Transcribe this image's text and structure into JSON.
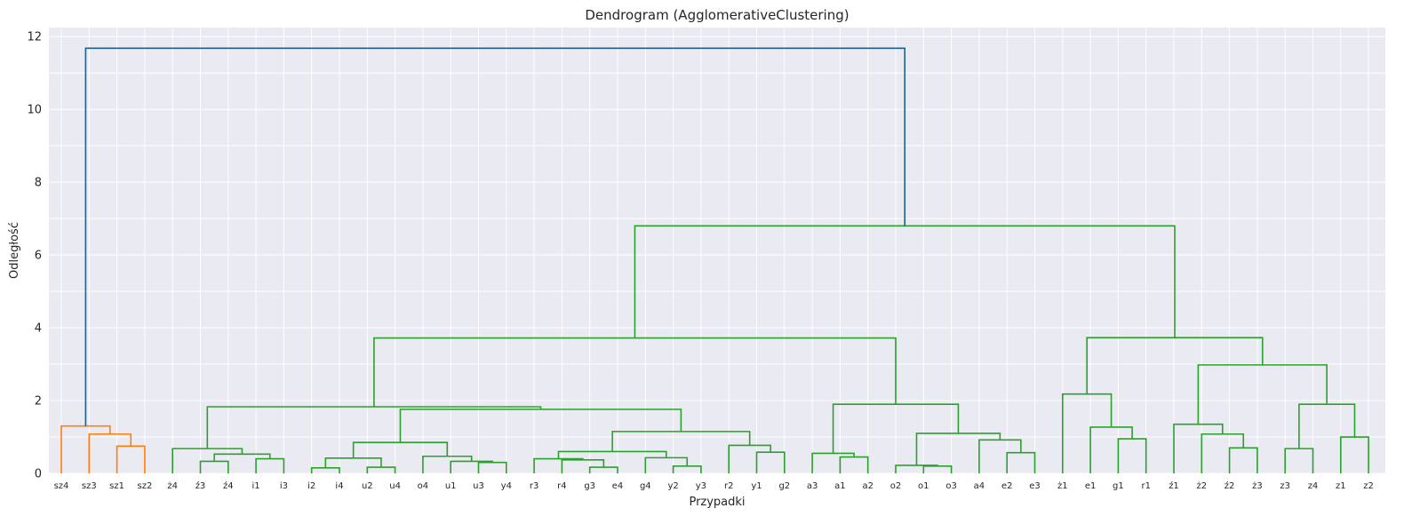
{
  "chart_data": {
    "type": "dendrogram",
    "title": "Dendrogram (AgglomerativeClustering)",
    "xlabel": "Przypadki",
    "ylabel": "Odległość",
    "ylim": [
      0,
      12.25
    ],
    "yticks": [
      0,
      2,
      4,
      6,
      8,
      10,
      12
    ],
    "grid": true,
    "colors": {
      "plot_background": "#eaeaf2",
      "root_link": "#1f5f8b",
      "cluster_1": "#ff7f0e",
      "cluster_2": "#2ca02c"
    },
    "leaves": [
      "sz4",
      "sz3",
      "sz1",
      "sz2",
      "ż4",
      "ź3",
      "ź4",
      "i1",
      "i3",
      "i2",
      "i4",
      "u2",
      "u4",
      "o4",
      "u1",
      "u3",
      "y4",
      "r3",
      "r4",
      "g3",
      "e4",
      "g4",
      "y2",
      "y3",
      "r2",
      "y1",
      "g2",
      "a3",
      "a1",
      "a2",
      "o2",
      "o1",
      "o3",
      "a4",
      "e2",
      "e3",
      "ż1",
      "e1",
      "g1",
      "r1",
      "ź1",
      "ż2",
      "ź2",
      "ż3",
      "z3",
      "z4",
      "z1",
      "z2"
    ],
    "merges": [
      {
        "id": "c1",
        "left": "sz1",
        "right": "sz2",
        "height": 0.75,
        "color": "cluster_1"
      },
      {
        "id": "c2",
        "left": "sz3",
        "right": "c1",
        "height": 1.08,
        "color": "cluster_1"
      },
      {
        "id": "c3",
        "left": "sz4",
        "right": "c2",
        "height": 1.3,
        "color": "cluster_1"
      },
      {
        "id": "c4",
        "left": "ź3",
        "right": "ź4",
        "height": 0.33,
        "color": "cluster_2"
      },
      {
        "id": "c5",
        "left": "i1",
        "right": "i3",
        "height": 0.4,
        "color": "cluster_2"
      },
      {
        "id": "c6",
        "left": "c4",
        "right": "c5",
        "height": 0.53,
        "color": "cluster_2"
      },
      {
        "id": "c7",
        "left": "ż4",
        "right": "c6",
        "height": 0.68,
        "color": "cluster_2"
      },
      {
        "id": "c8",
        "left": "i2",
        "right": "i4",
        "height": 0.15,
        "color": "cluster_2"
      },
      {
        "id": "c9",
        "left": "u2",
        "right": "u4",
        "height": 0.17,
        "color": "cluster_2"
      },
      {
        "id": "c10",
        "left": "c8",
        "right": "c9",
        "height": 0.42,
        "color": "cluster_2"
      },
      {
        "id": "c11",
        "left": "u3",
        "right": "y4",
        "height": 0.3,
        "color": "cluster_2"
      },
      {
        "id": "c12",
        "left": "u1",
        "right": "c11",
        "height": 0.33,
        "color": "cluster_2"
      },
      {
        "id": "c13",
        "left": "o4",
        "right": "c12",
        "height": 0.47,
        "color": "cluster_2"
      },
      {
        "id": "c14",
        "left": "c10",
        "right": "c13",
        "height": 0.85,
        "color": "cluster_2"
      },
      {
        "id": "c15",
        "left": "g3",
        "right": "e4",
        "height": 0.17,
        "color": "cluster_2"
      },
      {
        "id": "c16",
        "left": "r4",
        "right": "c15",
        "height": 0.37,
        "color": "cluster_2"
      },
      {
        "id": "c17",
        "left": "r3",
        "right": "c16",
        "height": 0.4,
        "color": "cluster_2"
      },
      {
        "id": "c18",
        "left": "y2",
        "right": "y3",
        "height": 0.2,
        "color": "cluster_2"
      },
      {
        "id": "c19",
        "left": "g4",
        "right": "c18",
        "height": 0.43,
        "color": "cluster_2"
      },
      {
        "id": "c20",
        "left": "c17",
        "right": "c19",
        "height": 0.6,
        "color": "cluster_2"
      },
      {
        "id": "c21",
        "left": "y1",
        "right": "g2",
        "height": 0.58,
        "color": "cluster_2"
      },
      {
        "id": "c22",
        "left": "r2",
        "right": "c21",
        "height": 0.77,
        "color": "cluster_2"
      },
      {
        "id": "c23",
        "left": "c20",
        "right": "c22",
        "height": 1.15,
        "color": "cluster_2"
      },
      {
        "id": "c24",
        "left": "c14",
        "right": "c23",
        "height": 1.76,
        "color": "cluster_2"
      },
      {
        "id": "c25",
        "left": "c7",
        "right": "c24",
        "height": 1.83,
        "color": "cluster_2"
      },
      {
        "id": "c26",
        "left": "a1",
        "right": "a2",
        "height": 0.45,
        "color": "cluster_2"
      },
      {
        "id": "c27",
        "left": "a3",
        "right": "c26",
        "height": 0.55,
        "color": "cluster_2"
      },
      {
        "id": "c28",
        "left": "o1",
        "right": "o3",
        "height": 0.2,
        "color": "cluster_2"
      },
      {
        "id": "c29",
        "left": "o2",
        "right": "c28",
        "height": 0.22,
        "color": "cluster_2"
      },
      {
        "id": "c30",
        "left": "e2",
        "right": "e3",
        "height": 0.57,
        "color": "cluster_2"
      },
      {
        "id": "c31",
        "left": "a4",
        "right": "c30",
        "height": 0.92,
        "color": "cluster_2"
      },
      {
        "id": "c32",
        "left": "c29",
        "right": "c31",
        "height": 1.1,
        "color": "cluster_2"
      },
      {
        "id": "c33",
        "left": "c27",
        "right": "c32",
        "height": 1.9,
        "color": "cluster_2"
      },
      {
        "id": "c34",
        "left": "c25",
        "right": "c33",
        "height": 3.72,
        "color": "cluster_2"
      },
      {
        "id": "c35",
        "left": "g1",
        "right": "r1",
        "height": 0.95,
        "color": "cluster_2"
      },
      {
        "id": "c36",
        "left": "e1",
        "right": "c35",
        "height": 1.27,
        "color": "cluster_2"
      },
      {
        "id": "c37",
        "left": "ż1",
        "right": "c36",
        "height": 2.18,
        "color": "cluster_2"
      },
      {
        "id": "c38",
        "left": "ź2",
        "right": "ż3",
        "height": 0.7,
        "color": "cluster_2"
      },
      {
        "id": "c39",
        "left": "ż2",
        "right": "c38",
        "height": 1.08,
        "color": "cluster_2"
      },
      {
        "id": "c40",
        "left": "ź1",
        "right": "c39",
        "height": 1.35,
        "color": "cluster_2"
      },
      {
        "id": "c41",
        "left": "z3",
        "right": "z4",
        "height": 0.68,
        "color": "cluster_2"
      },
      {
        "id": "c42",
        "left": "z1",
        "right": "z2",
        "height": 1.0,
        "color": "cluster_2"
      },
      {
        "id": "c43",
        "left": "c41",
        "right": "c42",
        "height": 1.9,
        "color": "cluster_2"
      },
      {
        "id": "c44",
        "left": "c40",
        "right": "c43",
        "height": 2.98,
        "color": "cluster_2"
      },
      {
        "id": "c45",
        "left": "c37",
        "right": "c44",
        "height": 3.73,
        "color": "cluster_2"
      },
      {
        "id": "c46",
        "left": "c34",
        "right": "c45",
        "height": 6.8,
        "color": "cluster_2"
      },
      {
        "id": "c47",
        "left": "c3",
        "right": "c46",
        "height": 11.68,
        "color": "root_link"
      }
    ]
  }
}
